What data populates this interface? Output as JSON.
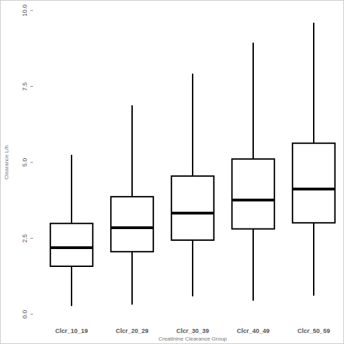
{
  "chart_data": {
    "type": "box",
    "x_label": "Creatinine Clearance Group",
    "y_label": "Clearance L/h",
    "categories": [
      "Clcr_10_19",
      "Clcr_20_29",
      "Clcr_30_39",
      "Clcr_40_49",
      "Clcr_50_59"
    ],
    "whisker_low": [
      0.27,
      0.32,
      0.59,
      0.45,
      0.61
    ],
    "q1": [
      1.58,
      2.06,
      2.44,
      2.81,
      3.01
    ],
    "median": [
      2.19,
      2.85,
      3.33,
      3.76,
      4.12
    ],
    "q3": [
      2.99,
      3.87,
      4.55,
      5.11,
      5.63
    ],
    "whisker_high": [
      5.25,
      6.88,
      7.92,
      8.94,
      9.6
    ],
    "color": "#000000",
    "ylim": [
      -0.3,
      10.3
    ],
    "yticks": [
      {
        "value": 0,
        "label": "0.0"
      },
      {
        "value": 2.5,
        "label": "2.5"
      },
      {
        "value": 5,
        "label": "5.0"
      },
      {
        "value": 7.5,
        "label": "7.5"
      },
      {
        "value": 10,
        "label": "10.0"
      }
    ],
    "grid": false
  }
}
